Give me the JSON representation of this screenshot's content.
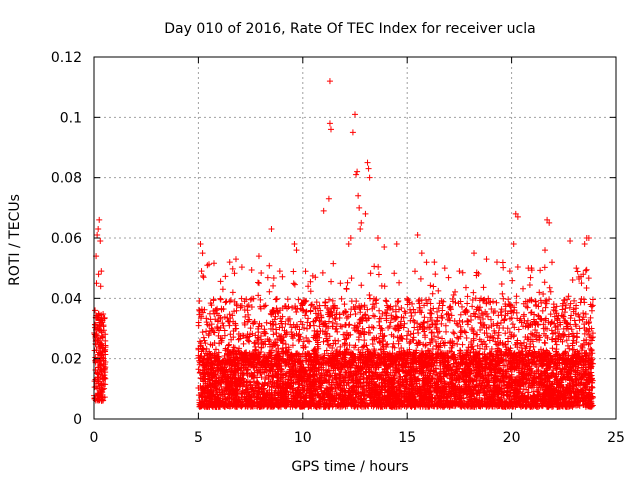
{
  "chart_data": {
    "type": "scatter",
    "title": "Day 010 of 2016, Rate Of TEC Index for receiver ucla",
    "xlabel": "GPS time / hours",
    "ylabel": "ROTI / TECUs",
    "xlim": [
      0,
      25
    ],
    "ylim": [
      0,
      0.12
    ],
    "xticks": [
      "0",
      "5",
      "10",
      "15",
      "20",
      "25"
    ],
    "yticks": [
      "0",
      "0.02",
      "0.04",
      "0.06",
      "0.08",
      "0.1",
      "0.12"
    ],
    "grid": true,
    "marker": "+",
    "series": [
      {
        "color": "#ff0000",
        "points": [
          [
            0.05,
            0.036
          ],
          [
            0.1,
            0.054
          ],
          [
            0.15,
            0.061
          ],
          [
            0.2,
            0.063
          ],
          [
            0.25,
            0.066
          ],
          [
            0.3,
            0.059
          ],
          [
            0.35,
            0.049
          ],
          [
            0.12,
            0.045
          ],
          [
            0.22,
            0.048
          ],
          [
            0.32,
            0.044
          ],
          [
            5.1,
            0.058
          ],
          [
            5.2,
            0.055
          ],
          [
            5.15,
            0.049
          ],
          [
            5.25,
            0.047
          ],
          [
            6.5,
            0.052
          ],
          [
            6.8,
            0.053
          ],
          [
            7.9,
            0.054
          ],
          [
            8.5,
            0.063
          ],
          [
            8.9,
            0.049
          ],
          [
            9.6,
            0.058
          ],
          [
            9.7,
            0.056
          ],
          [
            10.6,
            0.047
          ],
          [
            11.0,
            0.069
          ],
          [
            11.25,
            0.073
          ],
          [
            11.3,
            0.098
          ],
          [
            11.35,
            0.096
          ],
          [
            11.3,
            0.112
          ],
          [
            11.8,
            0.045
          ],
          [
            12.2,
            0.058
          ],
          [
            12.3,
            0.06
          ],
          [
            12.4,
            0.095
          ],
          [
            12.5,
            0.101
          ],
          [
            12.55,
            0.081
          ],
          [
            12.6,
            0.082
          ],
          [
            12.65,
            0.074
          ],
          [
            12.7,
            0.07
          ],
          [
            12.75,
            0.063
          ],
          [
            12.8,
            0.065
          ],
          [
            13.1,
            0.085
          ],
          [
            13.15,
            0.083
          ],
          [
            13.2,
            0.08
          ],
          [
            13.0,
            0.068
          ],
          [
            13.6,
            0.06
          ],
          [
            13.9,
            0.057
          ],
          [
            14.5,
            0.058
          ],
          [
            15.5,
            0.061
          ],
          [
            15.7,
            0.055
          ],
          [
            16.3,
            0.052
          ],
          [
            16.8,
            0.05
          ],
          [
            17.5,
            0.049
          ],
          [
            18.2,
            0.055
          ],
          [
            18.8,
            0.053
          ],
          [
            19.3,
            0.052
          ],
          [
            20.2,
            0.068
          ],
          [
            20.3,
            0.067
          ],
          [
            20.1,
            0.058
          ],
          [
            20.8,
            0.05
          ],
          [
            21.7,
            0.066
          ],
          [
            21.8,
            0.065
          ],
          [
            21.6,
            0.056
          ],
          [
            22.8,
            0.059
          ],
          [
            23.1,
            0.05
          ],
          [
            23.5,
            0.058
          ],
          [
            23.6,
            0.06
          ],
          [
            23.7,
            0.06
          ]
        ],
        "clusters": [
          {
            "x": [
              0.0,
              0.55
            ],
            "y": [
              0.006,
              0.035
            ],
            "n": 200
          },
          {
            "x": [
              5.0,
              23.9
            ],
            "y": [
              0.004,
              0.022
            ],
            "n": 5000
          },
          {
            "x": [
              5.0,
              23.9
            ],
            "y": [
              0.018,
              0.04
            ],
            "n": 1700
          },
          {
            "x": [
              5.0,
              23.9
            ],
            "y": [
              0.035,
              0.052
            ],
            "n": 160
          }
        ]
      }
    ]
  }
}
